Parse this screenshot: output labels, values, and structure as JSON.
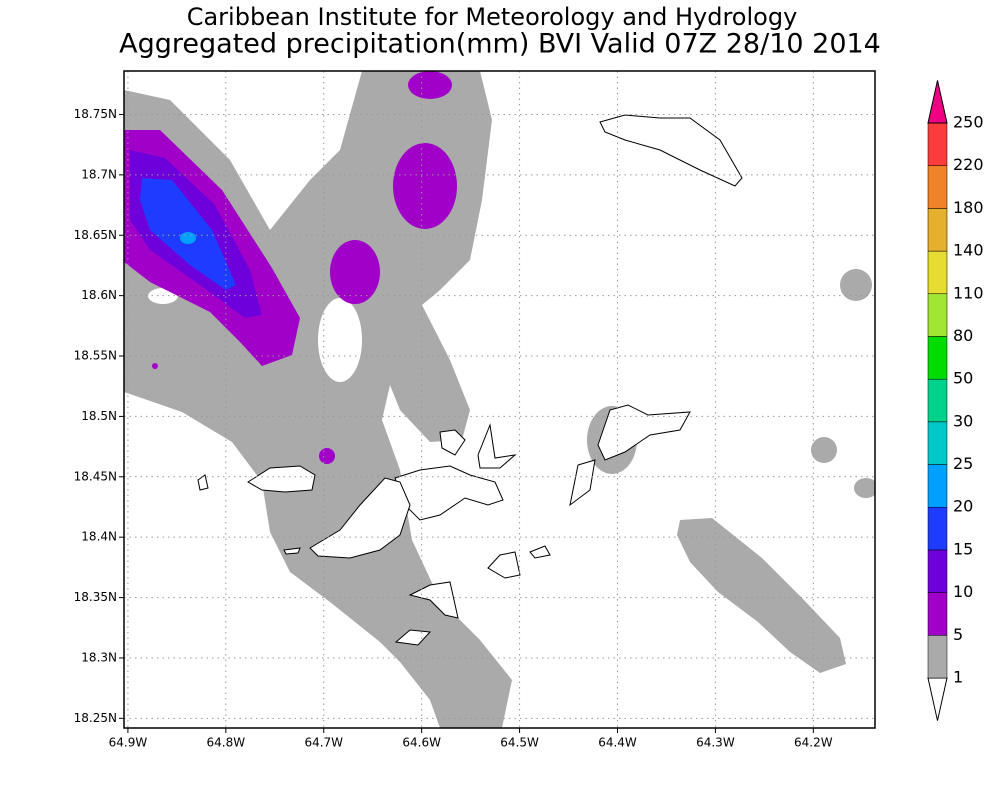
{
  "title": "Caribbean Institute for Meteorology and Hydrology",
  "subtitle": "Aggregated precipitation(mm) BVI Valid 07Z 28/10 2014",
  "map": {
    "xlim": [
      -64.904,
      -64.137
    ],
    "ylim": [
      18.242,
      18.786
    ],
    "xticks": [
      {
        "value": -64.9,
        "label": "64.9W"
      },
      {
        "value": -64.8,
        "label": "64.8W"
      },
      {
        "value": -64.7,
        "label": "64.7W"
      },
      {
        "value": -64.6,
        "label": "64.6W"
      },
      {
        "value": -64.5,
        "label": "64.5W"
      },
      {
        "value": -64.4,
        "label": "64.4W"
      },
      {
        "value": -64.3,
        "label": "64.3W"
      },
      {
        "value": -64.2,
        "label": "64.2W"
      }
    ],
    "yticks": [
      {
        "value": 18.25,
        "label": "18.25N"
      },
      {
        "value": 18.3,
        "label": "18.3N"
      },
      {
        "value": 18.35,
        "label": "18.35N"
      },
      {
        "value": 18.4,
        "label": "18.4N"
      },
      {
        "value": 18.45,
        "label": "18.45N"
      },
      {
        "value": 18.5,
        "label": "18.5N"
      },
      {
        "value": 18.55,
        "label": "18.55N"
      },
      {
        "value": 18.6,
        "label": "18.6N"
      },
      {
        "value": 18.65,
        "label": "18.65N"
      },
      {
        "value": 18.7,
        "label": "18.7N"
      },
      {
        "value": 18.75,
        "label": "18.75N"
      }
    ],
    "grid": true
  },
  "colorbar": {
    "levels": [
      1,
      5,
      10,
      15,
      20,
      25,
      30,
      50,
      80,
      110,
      140,
      180,
      220,
      250
    ],
    "colors": [
      "#ffffff",
      "#aaaaaa",
      "#a000c8",
      "#6e00dc",
      "#1e3cff",
      "#00a0ff",
      "#00c8c8",
      "#00d28c",
      "#00dc00",
      "#a0e632",
      "#e6dc32",
      "#e6af2d",
      "#f08228",
      "#fa3c3c",
      "#f00082"
    ]
  }
}
